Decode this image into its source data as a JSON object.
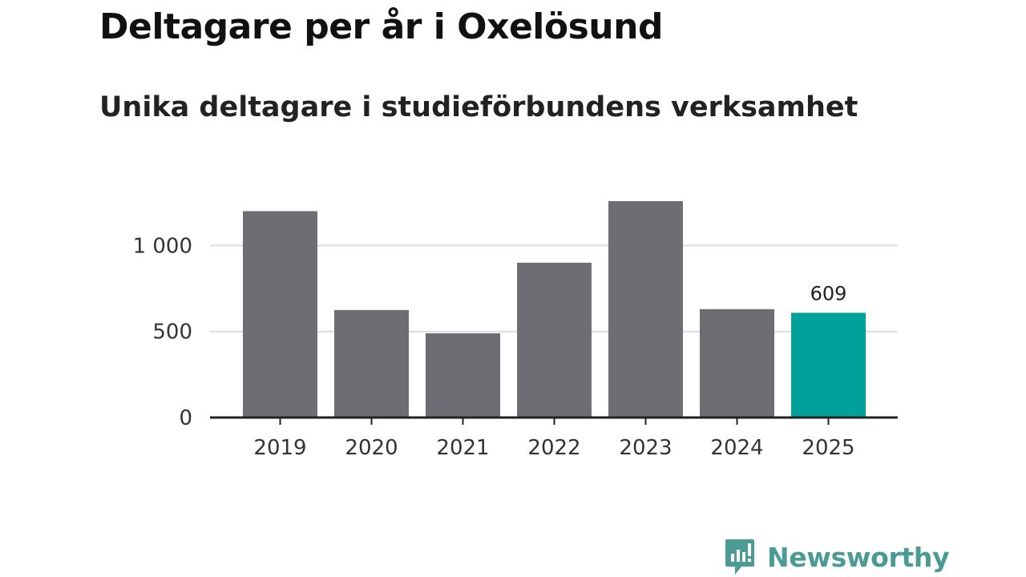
{
  "chart_data": {
    "type": "bar",
    "title": "Deltagare per år i Oxelösund",
    "subtitle": "Unika deltagare i studieförbundens verksamhet",
    "categories": [
      "2019",
      "2020",
      "2021",
      "2022",
      "2023",
      "2024",
      "2025"
    ],
    "values": [
      1200,
      625,
      490,
      900,
      1258,
      630,
      609
    ],
    "highlight_index": 6,
    "data_labels": [
      {
        "index": 6,
        "text": "609"
      }
    ],
    "ylim": [
      0,
      1300
    ],
    "yticks": [
      {
        "value": 0,
        "label": "0"
      },
      {
        "value": 500,
        "label": "500"
      },
      {
        "value": 1000,
        "label": "1 000"
      }
    ],
    "grid": true,
    "xlabel": "",
    "ylabel": "",
    "colors": {
      "bar": "#6e6d73",
      "highlight": "#00a19a",
      "grid": "#dddddd",
      "axis": "#222222",
      "text": "#333333"
    }
  },
  "logo": {
    "name": "Newsworthy",
    "icon": "newsworthy-logo-icon",
    "color": "#4a9b94"
  }
}
